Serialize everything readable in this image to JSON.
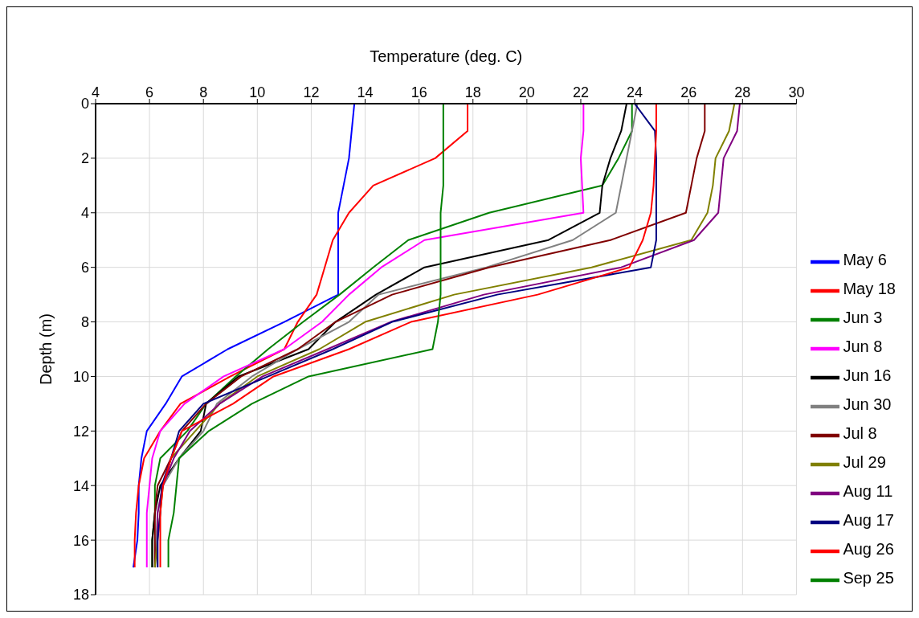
{
  "chart_data": {
    "type": "line",
    "xlabel": "Temperature (deg. C)",
    "ylabel": "Depth (m)",
    "xlim": [
      4,
      30
    ],
    "xticks": [
      4,
      6,
      8,
      10,
      12,
      14,
      16,
      18,
      20,
      22,
      24,
      26,
      28,
      30
    ],
    "ylim": [
      18,
      0
    ],
    "yticks": [
      0,
      2,
      4,
      6,
      8,
      10,
      12,
      14,
      16,
      18
    ],
    "grid": true,
    "legend": "right",
    "marker": "none",
    "line_style": "solid",
    "series": [
      {
        "name": "May 6",
        "color": "#0000ff",
        "x": [
          13.6,
          13.5,
          13.4,
          13.2,
          13.0,
          13.0,
          13.0,
          13.0,
          11.0,
          8.9,
          7.2,
          6.6,
          5.9,
          5.7,
          5.6,
          5.6,
          5.55,
          5.4
        ],
        "values": [
          0,
          1,
          2,
          3,
          4,
          5,
          6,
          7,
          8,
          9,
          10,
          11,
          12,
          13,
          14,
          15,
          16,
          17
        ]
      },
      {
        "name": "May 18",
        "color": "#ff0000",
        "x": [
          17.8,
          17.8,
          16.6,
          14.3,
          13.4,
          12.8,
          12.5,
          12.2,
          11.5,
          11.0,
          9.0,
          7.15,
          6.4,
          5.8,
          5.6,
          5.5,
          5.45,
          5.45
        ],
        "values": [
          0,
          1,
          2,
          3,
          4,
          5,
          6,
          7,
          8,
          9,
          10,
          11,
          12,
          13,
          14,
          15,
          16,
          17
        ]
      },
      {
        "name": "Jun 3",
        "color": "#008000",
        "x": [
          23.9,
          23.9,
          23.4,
          22.8,
          18.6,
          15.6,
          14.3,
          13.05,
          11.7,
          10.4,
          9.2,
          8.1,
          7.4,
          6.4,
          6.2,
          6.2,
          6.1,
          6.1
        ],
        "values": [
          0,
          1,
          2,
          3,
          4,
          5,
          6,
          7,
          8,
          9,
          10,
          11,
          12,
          13,
          14,
          15,
          16,
          17
        ]
      },
      {
        "name": "Jun 8",
        "color": "#ff00ff",
        "x": [
          22.1,
          22.1,
          22.0,
          22.05,
          22.1,
          16.2,
          14.6,
          13.4,
          12.4,
          11.0,
          8.75,
          7.3,
          6.4,
          6.1,
          6.0,
          5.9,
          5.9,
          5.9
        ],
        "values": [
          0,
          1,
          2,
          3,
          4,
          5,
          6,
          7,
          8,
          9,
          10,
          11,
          12,
          13,
          14,
          15,
          16,
          17
        ]
      },
      {
        "name": "Jun 16",
        "color": "#000000",
        "x": [
          23.7,
          23.5,
          23.1,
          22.8,
          22.7,
          20.8,
          16.2,
          14.4,
          12.9,
          11.9,
          9.3,
          8.1,
          7.9,
          7.1,
          6.4,
          6.2,
          6.1,
          6.1
        ],
        "values": [
          0,
          1,
          2,
          3,
          4,
          5,
          6,
          7,
          8,
          9,
          10,
          11,
          12,
          13,
          14,
          15,
          16,
          17
        ]
      },
      {
        "name": "Jun 30",
        "color": "#808080",
        "x": [
          24.1,
          23.9,
          23.7,
          23.5,
          23.3,
          21.7,
          18.5,
          14.5,
          13.4,
          11.5,
          9.8,
          8.5,
          8.0,
          7.1,
          6.5,
          6.3,
          6.25,
          6.2
        ],
        "values": [
          0,
          1,
          2,
          3,
          4,
          5,
          6,
          7,
          8,
          9,
          10,
          11,
          12,
          13,
          14,
          15,
          16,
          17
        ]
      },
      {
        "name": "Jul 8",
        "color": "#800000",
        "x": [
          26.6,
          26.6,
          26.3,
          26.1,
          25.9,
          23.1,
          18.6,
          15.0,
          12.9,
          11.5,
          9.4,
          8.1,
          7.2,
          6.8,
          6.3,
          6.2,
          6.2,
          6.2
        ],
        "values": [
          0,
          1,
          2,
          3,
          4,
          5,
          6,
          7,
          8,
          9,
          10,
          11,
          12,
          13,
          14,
          15,
          16,
          17
        ]
      },
      {
        "name": "Jul 29",
        "color": "#808000",
        "x": [
          27.7,
          27.5,
          27.0,
          26.9,
          26.7,
          26.1,
          22.4,
          17.3,
          14.0,
          12.3,
          10.0,
          8.6,
          7.7,
          6.8,
          6.5,
          6.4,
          6.3,
          6.2
        ],
        "values": [
          0,
          1,
          2,
          3,
          4,
          5,
          6,
          7,
          8,
          9,
          10,
          11,
          12,
          13,
          14,
          15,
          16,
          17
        ]
      },
      {
        "name": "Aug 11",
        "color": "#800080",
        "x": [
          27.9,
          27.8,
          27.3,
          27.2,
          27.1,
          26.2,
          23.5,
          18.4,
          14.95,
          12.6,
          10.2,
          8.6,
          7.5,
          6.9,
          6.5,
          6.3,
          6.3,
          6.3
        ],
        "values": [
          0,
          1,
          2,
          3,
          4,
          5,
          6,
          7,
          8,
          9,
          10,
          11,
          12,
          13,
          14,
          15,
          16,
          17
        ]
      },
      {
        "name": "Aug 17",
        "color": "#000080",
        "x": [
          24.0,
          24.75,
          24.8,
          24.8,
          24.8,
          24.8,
          24.6,
          18.9,
          15.0,
          12.8,
          10.4,
          8.0,
          7.1,
          6.8,
          6.45,
          6.4,
          6.3,
          6.3
        ],
        "values": [
          0,
          1,
          2,
          3,
          4,
          5,
          6,
          7,
          8,
          9,
          10,
          11,
          12,
          13,
          14,
          15,
          16,
          17
        ]
      },
      {
        "name": "Aug 26",
        "color": "#ff0000",
        "x": [
          24.8,
          24.8,
          24.75,
          24.7,
          24.6,
          24.3,
          23.8,
          20.4,
          15.7,
          13.4,
          10.6,
          9.1,
          7.2,
          6.8,
          6.5,
          6.4,
          6.4,
          6.4
        ],
        "values": [
          0,
          1,
          2,
          3,
          4,
          5,
          6,
          7,
          8,
          9,
          10,
          11,
          12,
          13,
          14,
          15,
          16,
          17
        ]
      },
      {
        "name": "Sep 25",
        "color": "#008000",
        "x": [
          16.9,
          16.9,
          16.9,
          16.9,
          16.8,
          16.8,
          16.8,
          16.8,
          16.7,
          16.5,
          11.9,
          9.8,
          8.2,
          7.1,
          7.0,
          6.9,
          6.7,
          6.7
        ],
        "values": [
          0,
          1,
          2,
          3,
          4,
          5,
          6,
          7,
          8,
          9,
          10,
          11,
          12,
          13,
          14,
          15,
          16,
          17
        ]
      }
    ]
  }
}
